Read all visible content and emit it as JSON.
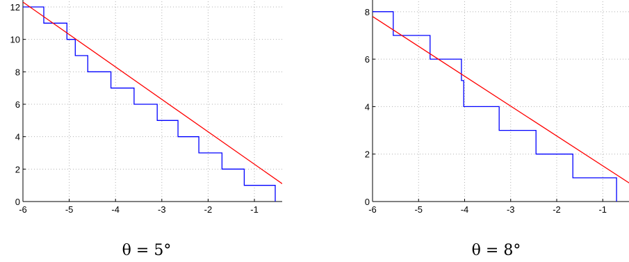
{
  "chart_data": [
    {
      "type": "line",
      "caption": "θ = 5°",
      "xlim": [
        -6,
        -0.4
      ],
      "ylim": [
        0,
        12
      ],
      "xticks": [
        -6,
        -5,
        -4,
        -3,
        -2,
        -1
      ],
      "xtick_labels": [
        "-6",
        "-5",
        "-4",
        "-3",
        "-2",
        "-1"
      ],
      "yticks": [
        0,
        2,
        4,
        6,
        8,
        10,
        12
      ],
      "ytick_labels": [
        "0",
        "2",
        "4",
        "6",
        "8",
        "10",
        "12"
      ],
      "grid": true,
      "series": [
        {
          "kind": "step",
          "color": "#0000ff",
          "points": [
            [
              -6,
              12
            ],
            [
              -5.55,
              12
            ],
            [
              -5.55,
              11
            ],
            [
              -5.05,
              11
            ],
            [
              -5.05,
              10
            ],
            [
              -4.87,
              10
            ],
            [
              -4.87,
              9
            ],
            [
              -4.6,
              9
            ],
            [
              -4.6,
              8
            ],
            [
              -4.1,
              8
            ],
            [
              -4.1,
              7
            ],
            [
              -3.6,
              7
            ],
            [
              -3.6,
              6
            ],
            [
              -3.1,
              6
            ],
            [
              -3.1,
              5
            ],
            [
              -2.65,
              5
            ],
            [
              -2.65,
              4
            ],
            [
              -2.2,
              4
            ],
            [
              -2.2,
              3
            ],
            [
              -1.7,
              3
            ],
            [
              -1.7,
              2
            ],
            [
              -1.22,
              2
            ],
            [
              -1.22,
              1
            ],
            [
              -0.55,
              1
            ],
            [
              -0.55,
              0
            ]
          ]
        },
        {
          "kind": "line",
          "color": "#ff0000",
          "points": [
            [
              -6,
              12.3
            ],
            [
              -0.4,
              1.1
            ]
          ]
        }
      ]
    },
    {
      "type": "line",
      "caption": "θ = 8°",
      "xlim": [
        -6,
        -0.4
      ],
      "ylim": [
        0,
        8.2
      ],
      "xticks": [
        -6,
        -5,
        -4,
        -3,
        -2,
        -1
      ],
      "xtick_labels": [
        "-6",
        "-5",
        "-4",
        "-3",
        "-2",
        "-1"
      ],
      "yticks": [
        0,
        2,
        4,
        6,
        8
      ],
      "ytick_labels": [
        "0",
        "2",
        "4",
        "6",
        "8"
      ],
      "grid": true,
      "series": [
        {
          "kind": "step",
          "color": "#0000ff",
          "points": [
            [
              -6,
              8
            ],
            [
              -5.55,
              8
            ],
            [
              -5.55,
              7
            ],
            [
              -4.75,
              7
            ],
            [
              -4.75,
              6
            ],
            [
              -4.07,
              6
            ],
            [
              -4.07,
              5.1
            ],
            [
              -4.02,
              5.1
            ],
            [
              -4.02,
              4
            ],
            [
              -3.25,
              4
            ],
            [
              -3.25,
              3
            ],
            [
              -2.45,
              3
            ],
            [
              -2.45,
              2
            ],
            [
              -1.65,
              2
            ],
            [
              -1.65,
              1
            ],
            [
              -0.7,
              1
            ],
            [
              -0.7,
              0
            ]
          ]
        },
        {
          "kind": "line",
          "color": "#ff0000",
          "points": [
            [
              -6,
              7.8
            ],
            [
              -0.4,
              0.75
            ]
          ]
        }
      ]
    }
  ]
}
